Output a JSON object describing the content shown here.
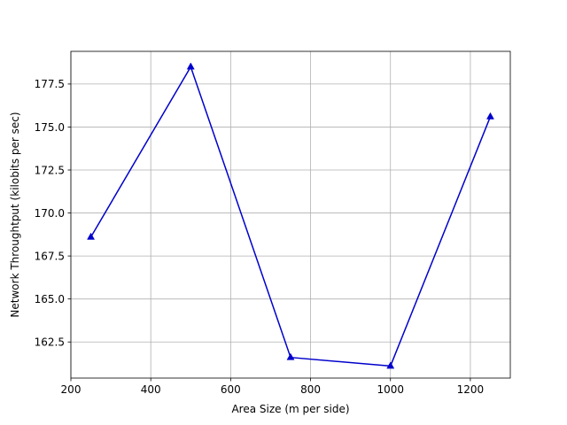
{
  "chart_data": {
    "type": "line",
    "title": "",
    "xlabel": "Area Size (m per side)",
    "ylabel": "Network Throughtput (kilobits per sec)",
    "xlim": [
      200,
      1300
    ],
    "ylim": [
      160.4,
      179.4
    ],
    "xticks": [
      200,
      400,
      600,
      800,
      1000,
      1200
    ],
    "yticks": [
      162.5,
      165.0,
      167.5,
      170.0,
      172.5,
      175.0,
      177.5
    ],
    "xtick_labels": [
      "200",
      "400",
      "600",
      "800",
      "1000",
      "1200"
    ],
    "ytick_labels": [
      "162.5",
      "165.0",
      "167.5",
      "170.0",
      "172.5",
      "175.0",
      "177.5"
    ],
    "grid": true,
    "series": [
      {
        "color": "#0000cc",
        "marker": "triangle",
        "x": [
          250,
          500,
          750,
          1000,
          1250
        ],
        "y": [
          168.6,
          178.5,
          161.6,
          161.1,
          175.6
        ]
      }
    ]
  }
}
